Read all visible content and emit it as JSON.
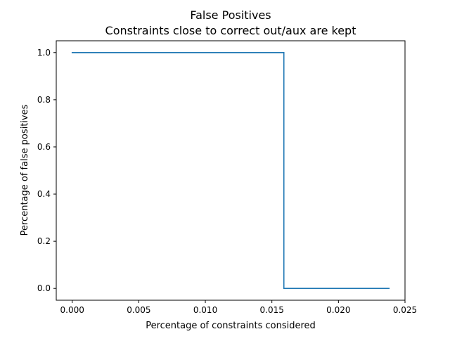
{
  "chart_data": {
    "type": "line",
    "title": "False Positives",
    "subtitle": "Constraints close to correct out/aux are kept",
    "xlabel": "Percentage of constraints considered",
    "ylabel": "Percentage of false positives",
    "xlim": [
      -0.0012,
      0.025
    ],
    "ylim": [
      -0.05,
      1.05
    ],
    "x_ticks": [
      0.0,
      0.005,
      0.01,
      0.015,
      0.02,
      0.025
    ],
    "x_tick_labels": [
      "0.000",
      "0.005",
      "0.010",
      "0.015",
      "0.020",
      "0.025"
    ],
    "y_ticks": [
      0.0,
      0.2,
      0.4,
      0.6,
      0.8,
      1.0
    ],
    "y_tick_labels": [
      "0.0",
      "0.2",
      "0.4",
      "0.6",
      "0.8",
      "1.0"
    ],
    "grid": false,
    "series": [
      {
        "color": "#1f77b4",
        "x": [
          0.0,
          0.0159,
          0.0159,
          0.0238
        ],
        "y": [
          1.0,
          1.0,
          0.0,
          0.0
        ]
      }
    ]
  }
}
